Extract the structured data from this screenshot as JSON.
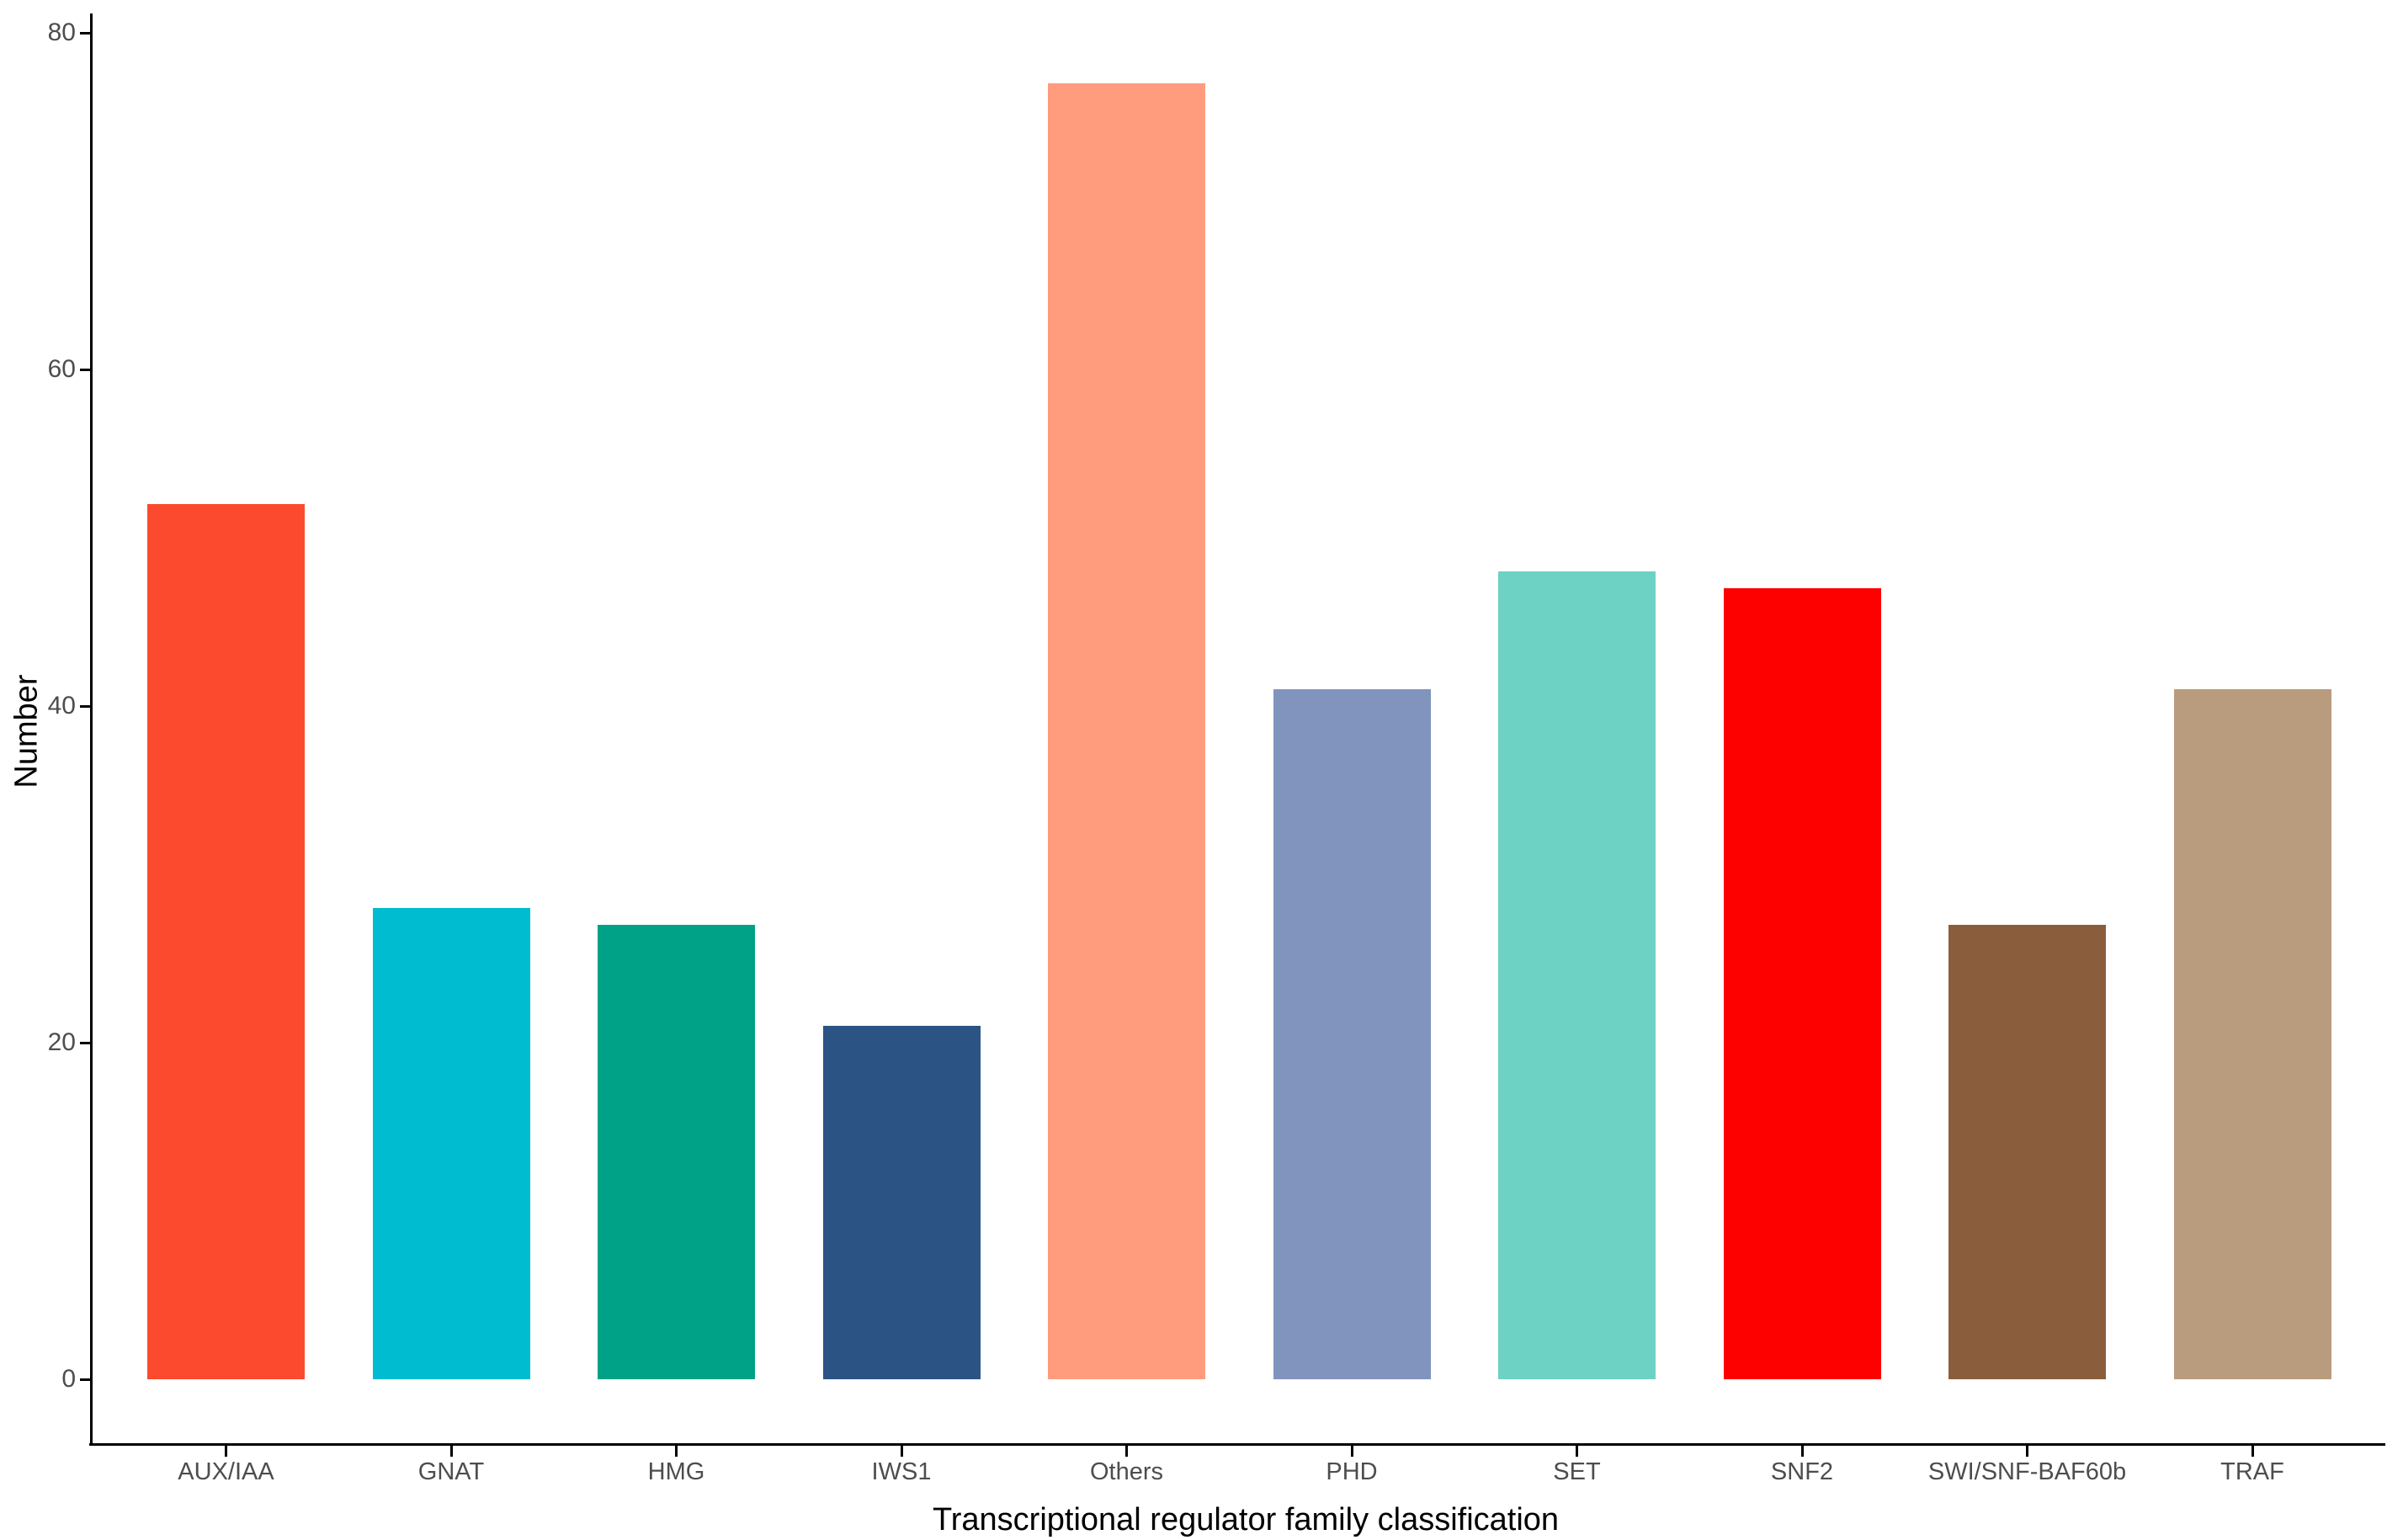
{
  "chart_data": {
    "type": "bar",
    "title": "",
    "xlabel": "Transcriptional regulator family classification",
    "ylabel": "Number",
    "categories": [
      "AUX/IAA",
      "GNAT",
      "HMG",
      "IWS1",
      "Others",
      "PHD",
      "SET",
      "SNF2",
      "SWI/SNF-BAF60b",
      "TRAF"
    ],
    "values": [
      52,
      28,
      27,
      21,
      77,
      41,
      48,
      47,
      27,
      41
    ],
    "colors": [
      "#FB4A2E",
      "#00BCD0",
      "#00A287",
      "#2B5485",
      "#FE9C7D",
      "#8094BE",
      "#6DD2C3",
      "#FD0000",
      "#8A5E3C",
      "#B99B7E"
    ],
    "yticks": [
      0,
      20,
      40,
      60,
      80
    ],
    "ylim": [
      -3.85,
      80.85
    ],
    "grid": false,
    "legend": false,
    "axis_line_color": "#000000",
    "tick_label_color": "#4D4D4D",
    "background_color": "#FFFFFF"
  }
}
